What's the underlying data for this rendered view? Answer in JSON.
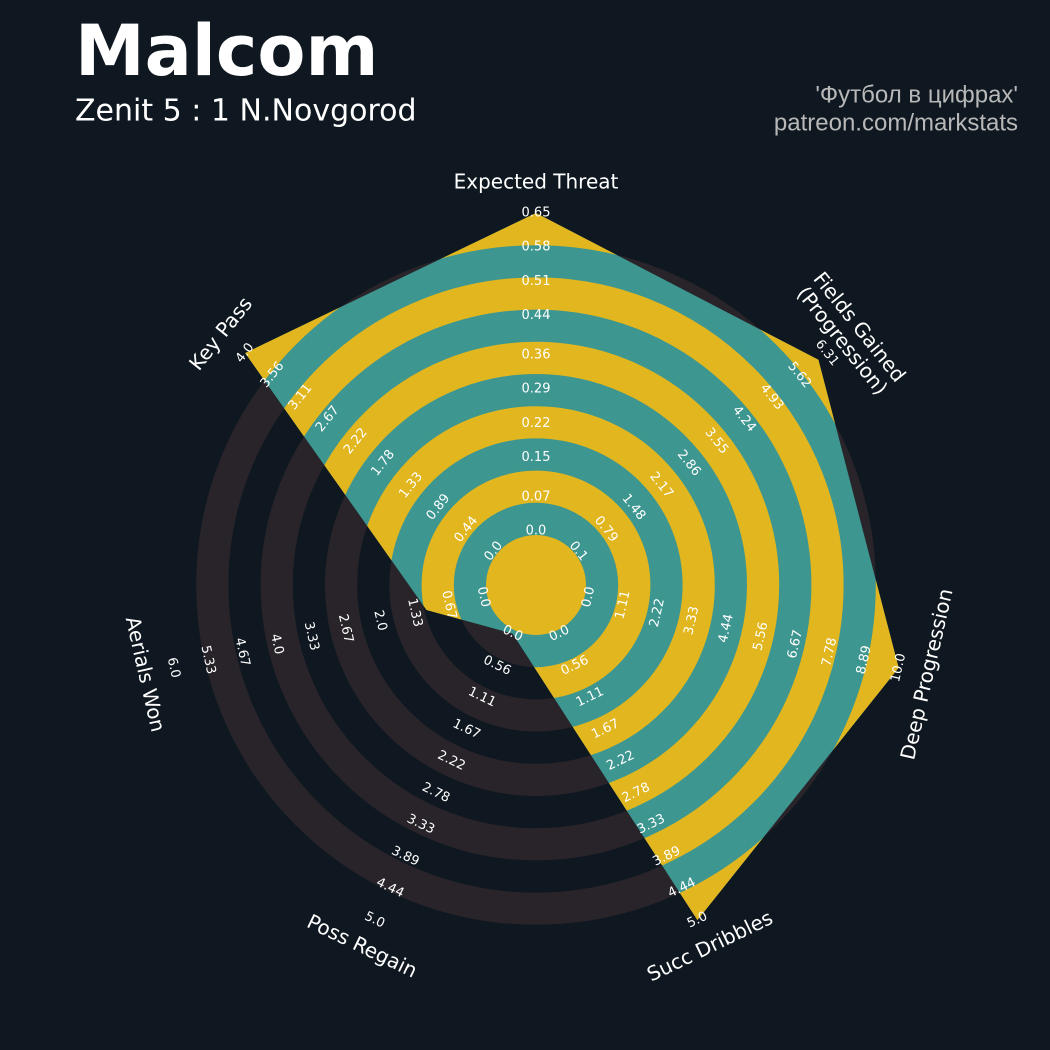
{
  "chart_data": {
    "type": "radar",
    "title": "Malcom",
    "subtitle": "Zenit 5 : 1 N.Novgorod",
    "credits": [
      "'Футбол в цифрах'",
      "patreon.com/markstats"
    ],
    "colors": {
      "background": "#0f1820",
      "ring": "#28242a",
      "radar": "#3d9690",
      "alt": "#e2b61e"
    },
    "params": [
      {
        "name": "Expected Threat",
        "value": 0.65,
        "lim": [
          0,
          0.65
        ],
        "ticks": [
          {
            "value": 0,
            "label": "0.0"
          },
          0.07,
          0.15,
          0.22,
          0.29,
          0.36,
          0.44,
          0.51,
          0.58,
          0.65
        ]
      },
      {
        "name": "Fields Gained\n(Progression)",
        "value": 6.1,
        "lim": [
          0.1,
          6.31
        ],
        "ticks": [
          0.1,
          0.79,
          1.48,
          2.17,
          2.86,
          3.55,
          4.24,
          4.93,
          5.62,
          6.31
        ]
      },
      {
        "name": "Deep Progression",
        "value": 10,
        "lim": [
          0,
          10
        ],
        "ticks": [
          {
            "value": 0,
            "label": "0.0"
          },
          1.11,
          2.22,
          3.33,
          4.44,
          5.56,
          6.67,
          7.78,
          8.89,
          {
            "value": 10,
            "label": "10.0"
          }
        ]
      },
      {
        "name": "Succ Dribbles",
        "value": 5,
        "lim": [
          0,
          5
        ],
        "ticks": [
          {
            "value": 0,
            "label": "0.0"
          },
          0.56,
          1.11,
          1.67,
          2.22,
          2.78,
          3.33,
          3.89,
          4.44,
          {
            "value": 5,
            "label": "5.0"
          }
        ]
      },
      {
        "name": "Poss Regain",
        "value": 0,
        "lim": [
          0,
          5
        ],
        "ticks": [
          {
            "value": 0,
            "label": "0.0"
          },
          0.56,
          1.11,
          1.67,
          2.22,
          2.78,
          3.33,
          3.89,
          4.44,
          {
            "value": 5,
            "label": "5.0"
          }
        ]
      },
      {
        "name": "Aerials Won",
        "value": 1.1,
        "lim": [
          0,
          6
        ],
        "ticks": [
          {
            "value": 0,
            "label": "0.0"
          },
          0.67,
          1.33,
          {
            "value": 2,
            "label": "2.0"
          },
          2.67,
          3.33,
          {
            "value": 4,
            "label": "4.0"
          },
          4.67,
          5.33,
          {
            "value": 6,
            "label": "6.0"
          }
        ]
      },
      {
        "name": "Key Pass",
        "value": 4,
        "lim": [
          0,
          4
        ],
        "ticks": [
          {
            "value": 0,
            "label": "0.0"
          },
          0.44,
          0.89,
          1.33,
          1.78,
          2.22,
          2.67,
          3.11,
          3.56,
          {
            "value": 4,
            "label": "4.0"
          }
        ]
      }
    ]
  }
}
